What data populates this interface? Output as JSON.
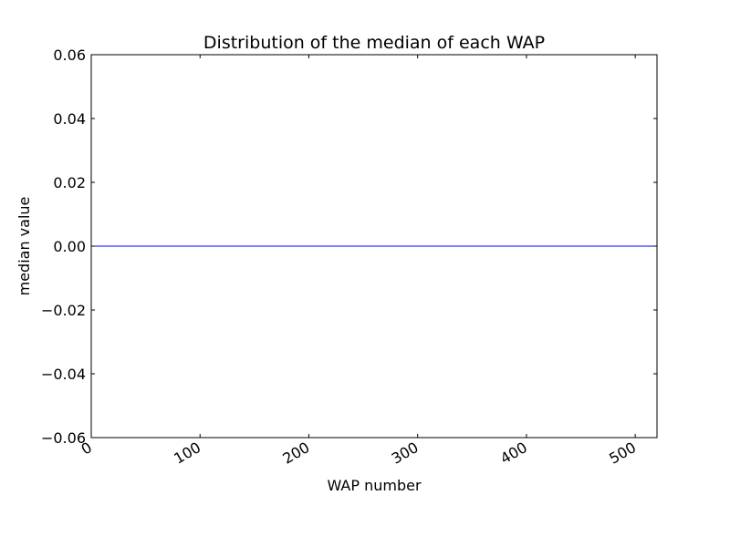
{
  "chart_data": {
    "type": "line",
    "title": "Distribution of the median of each WAP",
    "xlabel": "WAP number",
    "ylabel": "median value",
    "xlim": [
      0,
      520
    ],
    "ylim": [
      -0.06,
      0.06
    ],
    "x_ticks": [
      {
        "value": 0,
        "label": "0"
      },
      {
        "value": 100,
        "label": "100"
      },
      {
        "value": 200,
        "label": "200"
      },
      {
        "value": 300,
        "label": "300"
      },
      {
        "value": 400,
        "label": "400"
      },
      {
        "value": 500,
        "label": "500"
      }
    ],
    "y_ticks": [
      {
        "value": 0.06,
        "label": "0.06"
      },
      {
        "value": 0.04,
        "label": "0.04"
      },
      {
        "value": 0.02,
        "label": "0.02"
      },
      {
        "value": 0.0,
        "label": "0.00"
      },
      {
        "value": -0.02,
        "label": "−0.02"
      },
      {
        "value": -0.04,
        "label": "−0.04"
      },
      {
        "value": -0.06,
        "label": "−0.06"
      }
    ],
    "grid": false,
    "series": [
      {
        "color": "#0000ff",
        "x": [
          0,
          520
        ],
        "y": [
          0.0,
          0.0
        ]
      }
    ]
  }
}
